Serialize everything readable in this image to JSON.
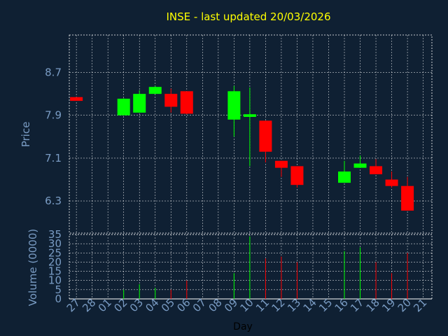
{
  "chart_data": {
    "type": "candlestick",
    "title": "INSE - last updated 20/03/2026",
    "price_panel": {
      "ylabel": "Price",
      "yticks": [
        6.3,
        7.1,
        7.9,
        8.7
      ],
      "ytick_labels": [
        "6.3",
        "7.1",
        "7.9",
        "8.7"
      ],
      "ylim": [
        5.7,
        9.4
      ],
      "grid": true
    },
    "volume_panel": {
      "ylabel": "Volume (0000)",
      "yticks": [
        0,
        5,
        10,
        15,
        20,
        25,
        30,
        35
      ],
      "ytick_labels": [
        "0",
        "5",
        "10",
        "15",
        "20",
        "25",
        "30",
        "35"
      ],
      "ylim": [
        0,
        35
      ],
      "grid": true
    },
    "xlabel": "Day",
    "x_tick_labels": [
      "27",
      "28",
      "01",
      "02",
      "03",
      "04",
      "05",
      "06",
      "07",
      "08",
      "09",
      "10",
      "11",
      "12",
      "13",
      "14",
      "15",
      "16",
      "17",
      "18",
      "19",
      "20",
      "21"
    ],
    "candles": [
      {
        "x": "27",
        "open": 8.24,
        "high": 8.24,
        "low": 8.17,
        "close": 8.17,
        "volume": 0
      },
      {
        "x": "02",
        "open": 7.9,
        "high": 8.22,
        "low": 7.9,
        "close": 8.21,
        "volume": 5
      },
      {
        "x": "03",
        "open": 7.95,
        "high": 8.37,
        "low": 7.95,
        "close": 8.3,
        "volume": 8
      },
      {
        "x": "04",
        "open": 8.3,
        "high": 8.45,
        "low": 8.3,
        "close": 8.43,
        "volume": 6
      },
      {
        "x": "05",
        "open": 8.3,
        "high": 8.4,
        "low": 7.95,
        "close": 8.06,
        "volume": 5
      },
      {
        "x": "06",
        "open": 8.35,
        "high": 8.35,
        "low": 7.92,
        "close": 7.93,
        "volume": 10
      },
      {
        "x": "09",
        "open": 7.82,
        "high": 8.45,
        "low": 7.5,
        "close": 8.35,
        "volume": 14
      },
      {
        "x": "10",
        "open": 7.87,
        "high": 8.42,
        "low": 6.95,
        "close": 7.92,
        "volume": 34
      },
      {
        "x": "11",
        "open": 7.8,
        "high": 7.8,
        "low": 7.02,
        "close": 7.22,
        "volume": 22
      },
      {
        "x": "12",
        "open": 7.05,
        "high": 7.05,
        "low": 6.75,
        "close": 6.92,
        "volume": 23
      },
      {
        "x": "13",
        "open": 6.95,
        "high": 6.95,
        "low": 6.55,
        "close": 6.6,
        "volume": 20
      },
      {
        "x": "16",
        "open": 6.64,
        "high": 7.05,
        "low": 6.64,
        "close": 6.85,
        "volume": 26
      },
      {
        "x": "17",
        "open": 6.92,
        "high": 7.15,
        "low": 6.92,
        "close": 7.0,
        "volume": 28
      },
      {
        "x": "18",
        "open": 6.95,
        "high": 7.08,
        "low": 6.8,
        "close": 6.8,
        "volume": 20
      },
      {
        "x": "19",
        "open": 6.7,
        "high": 6.85,
        "low": 6.55,
        "close": 6.58,
        "volume": 14
      },
      {
        "x": "20",
        "open": 6.58,
        "high": 6.75,
        "low": 6.12,
        "close": 6.12,
        "volume": 25
      }
    ],
    "colors": {
      "up": "#00ff00",
      "down": "#ff0000",
      "background": "#0f2033",
      "grid": "#ffffff",
      "axis_text": "#7a9cc4",
      "title": "#ffff00"
    }
  }
}
